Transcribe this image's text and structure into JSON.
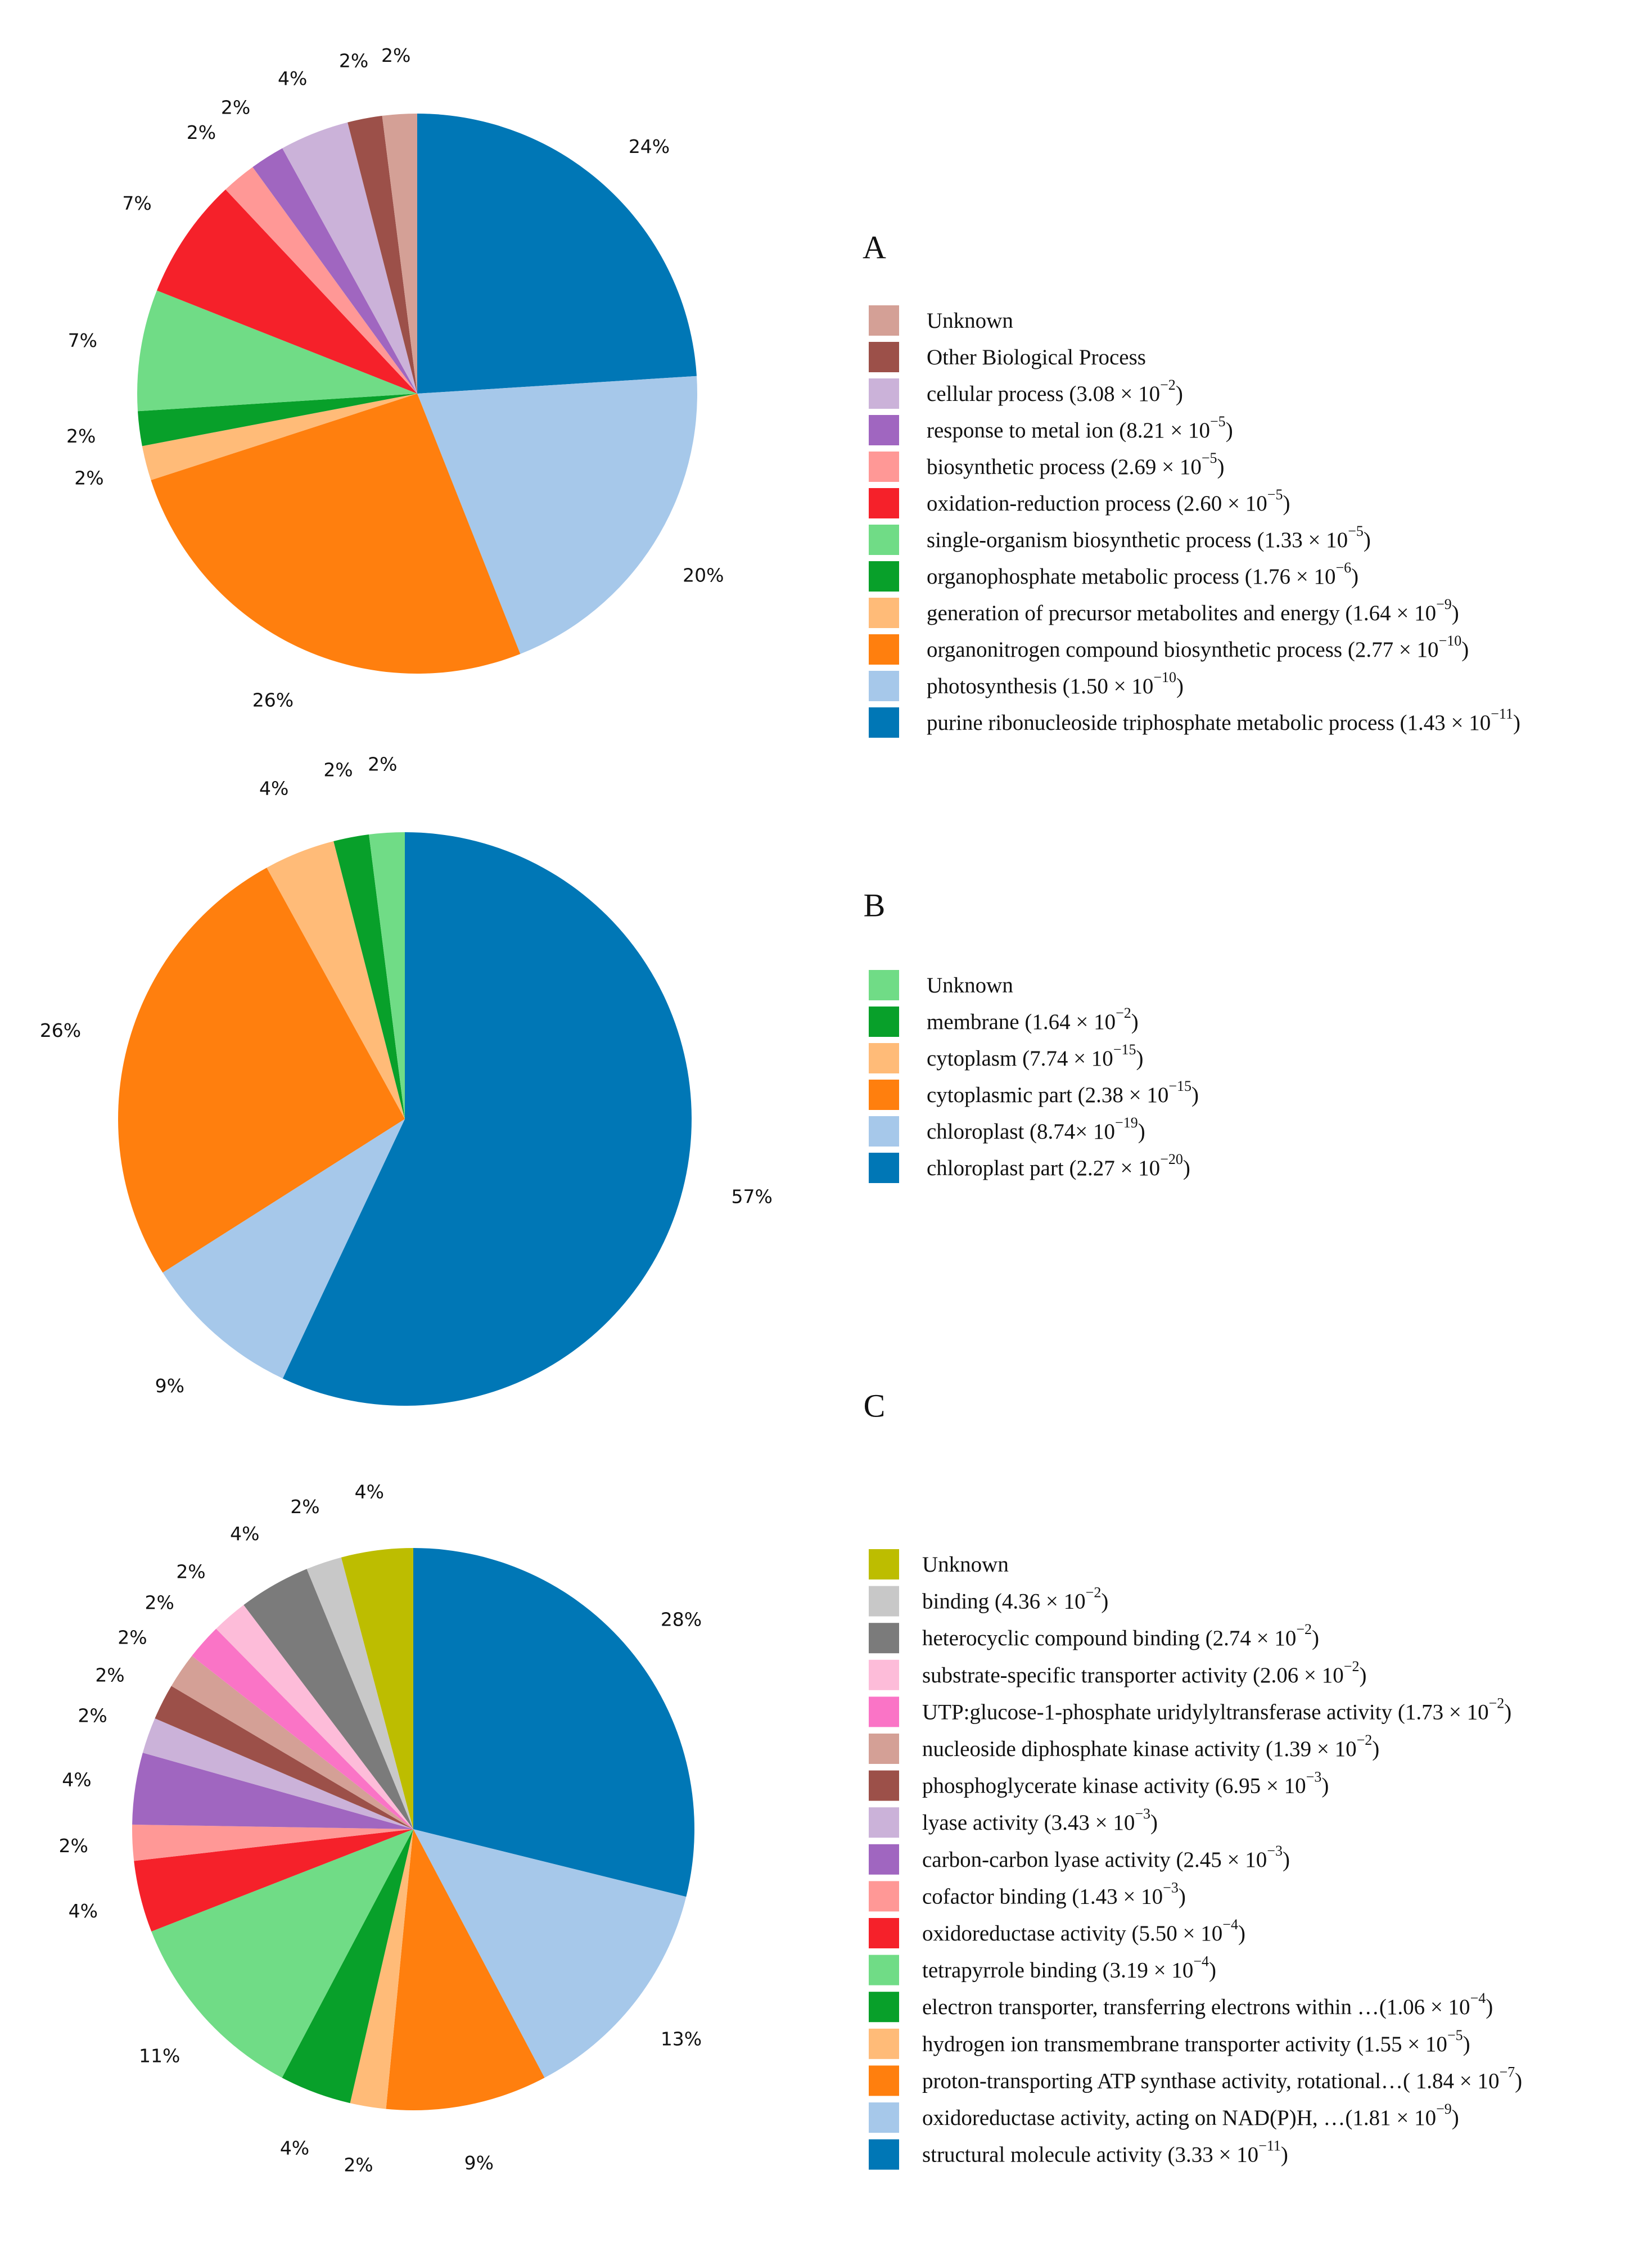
{
  "chart_data": [
    {
      "type": "pie",
      "panel": "A",
      "start": "12 o'clock, clockwise",
      "slices": [
        {
          "label": "purine ribonucleoside triphosphate metabolic process",
          "pvalue": "1.43 × 10",
          "exp": "−11",
          "pvalue_close": ")",
          "value": 24,
          "pct": "24%",
          "color": "#0077b6"
        },
        {
          "label": "photosynthesis",
          "pvalue": "1.50 × 10",
          "exp": "−10",
          "pvalue_close": ")",
          "value": 20,
          "pct": "20%",
          "color": "#a6c8ea"
        },
        {
          "label": "organonitrogen compound biosynthetic process",
          "pvalue": "2.77 × 10",
          "exp": "−10",
          "pvalue_close": ")",
          "value": 26,
          "pct": "26%",
          "color": "#ff7f0e"
        },
        {
          "label": "generation of precursor metabolites and energy",
          "pvalue": "1.64 × 10",
          "exp": "−9",
          "pvalue_close": ")",
          "value": 2,
          "pct": "2%",
          "color": "#ffbb78"
        },
        {
          "label": "organophosphate metabolic process",
          "pvalue": "1.76 × 10",
          "exp": "−6",
          "pvalue_close": ")",
          "value": 2,
          "pct": "2%",
          "color": "#08a02a"
        },
        {
          "label": "single-organism biosynthetic process",
          "pvalue": "1.33 × 10",
          "exp": "−5",
          "pvalue_close": ")",
          "value": 7,
          "pct": "7%",
          "color": "#70dc86"
        },
        {
          "label": "oxidation-reduction process",
          "pvalue": "2.60 × 10",
          "exp": "−5",
          "pvalue_close": ")",
          "value": 7,
          "pct": "7%",
          "color": "#f5212a"
        },
        {
          "label": "biosynthetic process",
          "pvalue": "2.69 × 10",
          "exp": "−5",
          "pvalue_close": ")",
          "value": 2,
          "pct": "2%",
          "color": "#ff9896"
        },
        {
          "label": "response to metal ion",
          "pvalue": "8.21 × 10",
          "exp": "−5",
          "pvalue_close": ")",
          "value": 2,
          "pct": "2%",
          "color": "#a066c0"
        },
        {
          "label": "cellular process",
          "pvalue": "3.08 × 10",
          "exp": "−2",
          "pvalue_close": ")",
          "value": 4,
          "pct": "4%",
          "color": "#cbb2d9"
        },
        {
          "label": "Other Biological Process",
          "pvalue": "",
          "exp": "",
          "pvalue_close": "",
          "value": 2,
          "pct": "2%",
          "color": "#9c5049"
        },
        {
          "label": "Unknown",
          "pvalue": "",
          "exp": "",
          "pvalue_close": "",
          "value": 2,
          "pct": "2%",
          "color": "#d4a096"
        }
      ]
    },
    {
      "type": "pie",
      "panel": "B",
      "start": "12 o'clock, clockwise",
      "slices": [
        {
          "label": "chloroplast part",
          "pvalue": "2.27 × 10",
          "exp": "−20",
          "pvalue_close": ")",
          "value": 57,
          "pct": "57%",
          "color": "#0077b6"
        },
        {
          "label": "chloroplast",
          "pvalue": "8.74× 10",
          "exp": "−19",
          "pvalue_close": ")",
          "value": 9,
          "pct": "9%",
          "color": "#a6c8ea"
        },
        {
          "label": "cytoplasmic part",
          "pvalue": "2.38 × 10",
          "exp": "−15",
          "pvalue_close": ")",
          "value": 26,
          "pct": "26%",
          "color": "#ff7f0e"
        },
        {
          "label": "cytoplasm",
          "pvalue": "7.74 × 10",
          "exp": "−15",
          "pvalue_close": ")",
          "value": 4,
          "pct": "4%",
          "color": "#ffbb78"
        },
        {
          "label": "membrane",
          "pvalue": "1.64 × 10",
          "exp": "−2",
          "pvalue_close": ")",
          "value": 2,
          "pct": "2%",
          "color": "#08a02a"
        },
        {
          "label": "Unknown",
          "pvalue": "",
          "exp": "",
          "pvalue_close": "",
          "value": 2,
          "pct": "2%",
          "color": "#70dc86"
        }
      ]
    },
    {
      "type": "pie",
      "panel": "C",
      "start": "12 o'clock, clockwise",
      "slices": [
        {
          "label": "structural molecule activity",
          "pvalue": "3.33 × 10",
          "exp": "−11",
          "pvalue_close": ")",
          "value": 28,
          "pct": "28%",
          "color": "#0077b6"
        },
        {
          "label": "oxidoreductase activity, acting on NAD(P)H, …",
          "pvalue": "1.81 × 10",
          "exp": "−9",
          "pvalue_close": ")",
          "value": 13,
          "pct": "13%",
          "color": "#a6c8ea"
        },
        {
          "label": "proton-transporting ATP synthase activity, rotational…",
          "pvalue": " 1.84 × 10",
          "exp": "−7",
          "pvalue_close": ")",
          "value": 9,
          "pct": "9%",
          "color": "#ff7f0e"
        },
        {
          "label": "hydrogen ion transmembrane transporter activity",
          "pvalue": "1.55 × 10",
          "exp": "−5",
          "pvalue_close": ")",
          "value": 2,
          "pct": "2%",
          "color": "#ffbb78"
        },
        {
          "label": "electron transporter, transferring electrons within …",
          "pvalue": "1.06 × 10",
          "exp": "−4",
          "pvalue_close": ")",
          "value": 4,
          "pct": "4%",
          "color": "#08a02a"
        },
        {
          "label": "tetrapyrrole binding",
          "pvalue": "3.19 × 10",
          "exp": "−4",
          "pvalue_close": ")",
          "value": 11,
          "pct": "11%",
          "color": "#70dc86"
        },
        {
          "label": "oxidoreductase activity",
          "pvalue": "5.50 × 10",
          "exp": "−4",
          "pvalue_close": ")",
          "value": 4,
          "pct": "4%",
          "color": "#f5212a"
        },
        {
          "label": "cofactor binding",
          "pvalue": "1.43 × 10",
          "exp": "−3",
          "pvalue_close": ")",
          "value": 2,
          "pct": "2%",
          "color": "#ff9896"
        },
        {
          "label": "carbon-carbon lyase activity",
          "pvalue": "2.45 × 10",
          "exp": "−3",
          "pvalue_close": ")",
          "value": 4,
          "pct": "4%",
          "color": "#a066c0"
        },
        {
          "label": "lyase activity",
          "pvalue": "3.43 × 10",
          "exp": "−3",
          "pvalue_close": ")",
          "value": 2,
          "pct": "2%",
          "color": "#cbb2d9"
        },
        {
          "label": "phosphoglycerate kinase activity",
          "pvalue": "6.95 × 10",
          "exp": "−3",
          "pvalue_close": ")",
          "value": 2,
          "pct": "2%",
          "color": "#9c5049"
        },
        {
          "label": "nucleoside diphosphate kinase activity",
          "pvalue": "1.39 × 10",
          "exp": "−2",
          "pvalue_close": ")",
          "value": 2,
          "pct": "2%",
          "color": "#d4a096"
        },
        {
          "label": "UTP:glucose-1-phosphate uridylyltransferase activity",
          "pvalue": "1.73 × 10",
          "exp": "−2",
          "pvalue_close": ")",
          "value": 2,
          "pct": "2%",
          "color": "#fa74c6"
        },
        {
          "label": "substrate-specific transporter activity",
          "pvalue": "2.06 × 10",
          "exp": "−2",
          "pvalue_close": ")",
          "value": 2,
          "pct": "2%",
          "color": "#fdbcd9"
        },
        {
          "label": "heterocyclic compound binding",
          "pvalue": "2.74 × 10",
          "exp": "−2",
          "pvalue_close": ")",
          "value": 4,
          "pct": "4%",
          "color": "#7b7b7b"
        },
        {
          "label": "binding",
          "pvalue": "4.36 × 10",
          "exp": "−2",
          "pvalue_close": ")",
          "value": 2,
          "pct": "2%",
          "color": "#c8c8c8"
        },
        {
          "label": "Unknown",
          "pvalue": "",
          "exp": "",
          "pvalue_close": "",
          "value": 4,
          "pct": "4%",
          "color": "#bdbd00"
        }
      ]
    }
  ]
}
